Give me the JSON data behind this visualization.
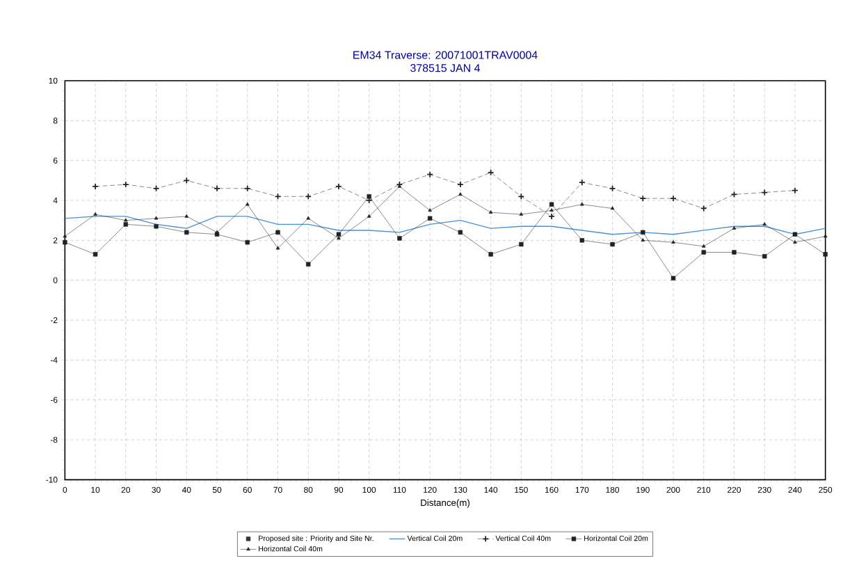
{
  "chart_data": {
    "type": "line",
    "title": "EM34 Traverse: 20071001TRAV0004",
    "subtitle": "378515 JAN 4",
    "xlabel": "Distance(m)",
    "x": [
      0,
      10,
      20,
      30,
      40,
      50,
      60,
      70,
      80,
      90,
      100,
      110,
      120,
      130,
      140,
      150,
      160,
      170,
      180,
      190,
      200,
      210,
      220,
      230,
      240,
      250
    ],
    "xlim": [
      0,
      250
    ],
    "xticks": [
      0,
      10,
      20,
      30,
      40,
      50,
      60,
      70,
      80,
      90,
      100,
      110,
      120,
      130,
      140,
      150,
      160,
      170,
      180,
      190,
      200,
      210,
      220,
      230,
      240,
      250
    ],
    "ylim": [
      -10,
      10
    ],
    "yticks": [
      -10,
      -8,
      -6,
      -4,
      -2,
      0,
      2,
      4,
      6,
      8,
      10
    ],
    "grid": true,
    "legend": "bottom",
    "series": [
      {
        "name": "Proposed site : Priority and Site Nr.",
        "type": "scatter",
        "marker": "square",
        "color": "#333333",
        "values": [
          null,
          null,
          null,
          null,
          null,
          null,
          null,
          null,
          null,
          null,
          null,
          null,
          null,
          null,
          null,
          null,
          null,
          null,
          null,
          null,
          null,
          null,
          null,
          null,
          null,
          null
        ]
      },
      {
        "name": "Vertical Coil 20m",
        "marker": "none",
        "line_style": "solid",
        "color": "#4a90d9",
        "values": [
          3.1,
          3.2,
          3.2,
          2.8,
          2.6,
          3.2,
          3.2,
          2.8,
          2.8,
          2.5,
          2.5,
          2.4,
          2.8,
          3.0,
          2.6,
          2.7,
          2.7,
          2.5,
          2.3,
          2.4,
          2.3,
          2.5,
          2.7,
          2.7,
          2.3,
          2.6
        ]
      },
      {
        "name": "Vertical Coil 40m",
        "marker": "cross",
        "line_style": "dashed",
        "color": "#222222",
        "values": [
          null,
          4.7,
          4.8,
          4.6,
          5.0,
          4.6,
          4.6,
          4.2,
          4.2,
          4.7,
          4.0,
          4.8,
          5.3,
          4.8,
          5.4,
          4.2,
          3.2,
          4.9,
          4.6,
          4.1,
          4.1,
          3.6,
          4.3,
          4.4,
          4.5,
          null
        ]
      },
      {
        "name": "Horizontal Coil 20m",
        "marker": "square",
        "line_style": "solid",
        "color": "#222222",
        "values": [
          1.9,
          1.3,
          2.8,
          2.7,
          2.4,
          2.3,
          1.9,
          2.4,
          0.8,
          2.3,
          4.2,
          2.1,
          3.1,
          2.4,
          1.3,
          1.8,
          3.8,
          2.0,
          1.8,
          2.4,
          0.1,
          1.4,
          1.4,
          1.2,
          2.3,
          1.3
        ]
      },
      {
        "name": "Horizontal Coil 40m",
        "marker": "triangle",
        "line_style": "solid",
        "color": "#222222",
        "values": [
          2.2,
          3.3,
          3.0,
          3.1,
          3.2,
          2.4,
          3.8,
          1.6,
          3.1,
          2.1,
          3.2,
          4.7,
          3.5,
          4.3,
          3.4,
          3.3,
          3.5,
          3.8,
          3.6,
          2.0,
          1.9,
          1.7,
          2.6,
          2.8,
          1.9,
          2.2
        ]
      }
    ]
  }
}
